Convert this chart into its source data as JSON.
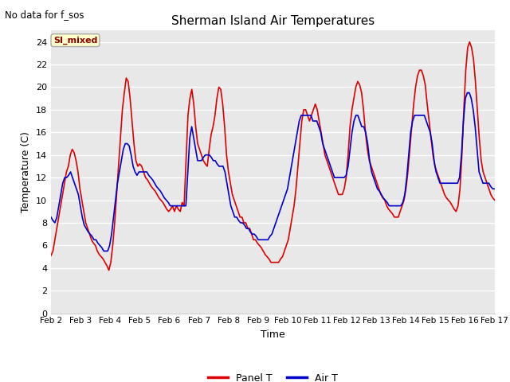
{
  "title": "Sherman Island Air Temperatures",
  "top_left_text": "No data for f_sos",
  "ylabel": "Temperature (C)",
  "xlabel": "Time",
  "ylim": [
    0,
    25
  ],
  "yticks": [
    0,
    2,
    4,
    6,
    8,
    10,
    12,
    14,
    16,
    18,
    20,
    22,
    24
  ],
  "xtick_labels": [
    "Feb 2",
    "Feb 3",
    "Feb 4",
    "Feb 5",
    "Feb 6",
    "Feb 7",
    "Feb 8",
    "Feb 9",
    "Feb 10",
    "Feb 11",
    "Feb 12",
    "Feb 13",
    "Feb 14",
    "Feb 15",
    "Feb 16",
    "Feb 17"
  ],
  "legend_label_panel": "Panel T",
  "legend_label_air": "Air T",
  "panel_color": "#dd0000",
  "air_color": "#0000cc",
  "bg_color": "#e8e8e8",
  "fig_bg_color": "#ffffff",
  "si_mixed_box_color": "#ffffcc",
  "si_mixed_text_color": "#8b0000",
  "si_mixed_border_color": "#aaaaaa",
  "linewidth": 1.2,
  "panel_t": [
    5.1,
    5.5,
    6.5,
    7.5,
    8.5,
    9.5,
    10.5,
    11.5,
    12.5,
    13.0,
    14.0,
    14.5,
    14.2,
    13.5,
    12.5,
    11.0,
    10.0,
    9.0,
    8.0,
    7.5,
    7.0,
    6.5,
    6.2,
    6.0,
    5.5,
    5.2,
    5.0,
    4.8,
    4.5,
    4.2,
    3.8,
    4.5,
    6.0,
    8.0,
    10.5,
    13.0,
    15.5,
    18.0,
    19.5,
    20.8,
    20.5,
    19.0,
    17.0,
    15.0,
    13.5,
    13.0,
    13.2,
    13.0,
    12.5,
    12.0,
    11.8,
    11.5,
    11.2,
    11.0,
    10.8,
    10.5,
    10.2,
    10.0,
    9.8,
    9.5,
    9.2,
    9.0,
    9.2,
    9.5,
    9.0,
    9.5,
    9.2,
    9.0,
    9.8,
    9.5,
    13.5,
    17.5,
    19.0,
    19.8,
    18.5,
    16.5,
    15.0,
    14.5,
    14.0,
    13.5,
    13.2,
    13.0,
    14.5,
    15.8,
    16.5,
    17.5,
    19.0,
    20.0,
    19.8,
    18.5,
    16.5,
    14.0,
    12.5,
    11.5,
    10.5,
    10.0,
    9.5,
    9.0,
    8.5,
    8.5,
    8.0,
    8.0,
    7.5,
    7.5,
    7.0,
    6.5,
    6.5,
    6.2,
    6.0,
    5.8,
    5.5,
    5.2,
    5.0,
    4.8,
    4.5,
    4.5,
    4.5,
    4.5,
    4.5,
    4.8,
    5.0,
    5.5,
    6.0,
    6.5,
    7.5,
    8.5,
    9.5,
    11.0,
    13.0,
    15.0,
    17.0,
    18.0,
    18.0,
    17.5,
    17.0,
    17.5,
    18.0,
    18.5,
    18.0,
    17.0,
    16.0,
    15.0,
    14.0,
    13.5,
    13.0,
    12.5,
    12.0,
    11.5,
    11.0,
    10.5,
    10.5,
    10.5,
    11.0,
    12.0,
    14.0,
    16.5,
    18.0,
    19.0,
    20.0,
    20.5,
    20.2,
    19.5,
    18.0,
    16.0,
    14.5,
    13.5,
    13.0,
    12.5,
    12.0,
    11.5,
    11.0,
    10.5,
    10.2,
    10.0,
    9.5,
    9.2,
    9.0,
    8.8,
    8.5,
    8.5,
    8.5,
    9.0,
    9.5,
    10.0,
    11.0,
    12.5,
    14.5,
    16.5,
    18.5,
    20.0,
    21.0,
    21.5,
    21.5,
    21.0,
    20.2,
    18.5,
    17.0,
    15.5,
    14.0,
    13.0,
    12.5,
    12.0,
    11.5,
    11.0,
    10.5,
    10.2,
    10.0,
    9.8,
    9.5,
    9.2,
    9.0,
    9.5,
    11.0,
    14.0,
    18.0,
    21.5,
    23.5,
    24.0,
    23.5,
    22.5,
    20.5,
    18.0,
    15.5,
    13.5,
    12.5,
    12.0,
    11.5,
    11.0,
    10.5,
    10.2,
    10.0
  ],
  "air_t": [
    8.5,
    8.2,
    8.0,
    8.5,
    9.5,
    10.5,
    11.5,
    12.0,
    12.0,
    12.2,
    12.5,
    12.0,
    11.5,
    11.0,
    10.5,
    9.5,
    8.5,
    7.8,
    7.5,
    7.2,
    7.0,
    6.8,
    6.5,
    6.5,
    6.2,
    6.0,
    5.8,
    5.5,
    5.5,
    5.5,
    6.0,
    7.0,
    8.5,
    10.0,
    11.5,
    12.5,
    13.5,
    14.5,
    15.0,
    15.0,
    14.8,
    14.0,
    13.0,
    12.5,
    12.2,
    12.5,
    12.5,
    12.5,
    12.5,
    12.5,
    12.2,
    12.0,
    11.8,
    11.5,
    11.2,
    11.0,
    10.8,
    10.5,
    10.2,
    10.0,
    9.8,
    9.5,
    9.5,
    9.5,
    9.5,
    9.5,
    9.5,
    9.5,
    9.5,
    9.5,
    12.5,
    15.5,
    16.5,
    15.5,
    14.5,
    13.5,
    13.5,
    13.5,
    13.8,
    14.0,
    14.0,
    14.0,
    13.8,
    13.5,
    13.5,
    13.2,
    13.0,
    13.0,
    13.0,
    12.5,
    11.5,
    10.5,
    9.5,
    9.0,
    8.5,
    8.5,
    8.2,
    8.0,
    8.0,
    7.8,
    7.5,
    7.5,
    7.2,
    7.0,
    7.0,
    6.8,
    6.5,
    6.5,
    6.5,
    6.5,
    6.5,
    6.5,
    6.8,
    7.0,
    7.5,
    8.0,
    8.5,
    9.0,
    9.5,
    10.0,
    10.5,
    11.0,
    12.0,
    13.0,
    14.0,
    15.0,
    16.0,
    17.0,
    17.5,
    17.5,
    17.5,
    17.5,
    17.5,
    17.5,
    17.0,
    17.0,
    17.0,
    16.5,
    16.0,
    15.0,
    14.5,
    14.0,
    13.5,
    13.0,
    12.5,
    12.0,
    12.0,
    12.0,
    12.0,
    12.0,
    12.0,
    12.2,
    13.0,
    14.5,
    16.0,
    17.0,
    17.5,
    17.5,
    17.0,
    16.5,
    16.5,
    16.0,
    15.0,
    13.5,
    12.5,
    12.0,
    11.5,
    11.0,
    10.8,
    10.5,
    10.2,
    10.0,
    9.8,
    9.5,
    9.5,
    9.5,
    9.5,
    9.5,
    9.5,
    9.5,
    9.8,
    10.5,
    12.0,
    14.0,
    16.0,
    17.0,
    17.5,
    17.5,
    17.5,
    17.5,
    17.5,
    17.5,
    17.0,
    16.5,
    16.0,
    15.0,
    13.5,
    12.5,
    12.0,
    11.5,
    11.5,
    11.5,
    11.5,
    11.5,
    11.5,
    11.5,
    11.5,
    11.5,
    11.5,
    12.0,
    14.0,
    17.0,
    19.0,
    19.5,
    19.5,
    19.0,
    18.0,
    16.5,
    14.5,
    12.5,
    12.0,
    11.5,
    11.5,
    11.5,
    11.5,
    11.2,
    11.0,
    11.0
  ]
}
